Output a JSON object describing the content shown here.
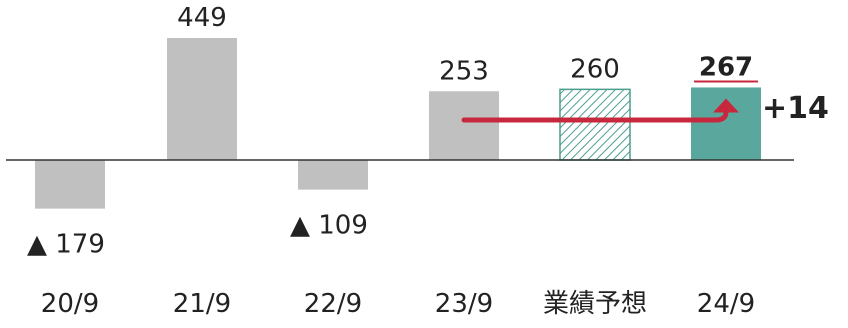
{
  "chart_data": {
    "type": "bar",
    "categories": [
      "20/9",
      "21/9",
      "22/9",
      "23/9",
      "業績予想",
      "24/9"
    ],
    "values": [
      -179,
      449,
      -109,
      253,
      260,
      267
    ],
    "value_labels": [
      "▲ 179",
      "449",
      "▲ 109",
      "253",
      "260",
      "267"
    ],
    "bar_styles": [
      "gray",
      "gray",
      "gray",
      "gray",
      "hatched",
      "teal"
    ],
    "highlight_index": 5,
    "change_annotation": {
      "from_index": 3,
      "to_index": 5,
      "label": "+14"
    },
    "title": "",
    "xlabel": "",
    "ylabel": "",
    "ylim": [
      -210,
      470
    ],
    "grid": false,
    "legend": "none",
    "colors": {
      "gray": "#c0c0c0",
      "teal": "#5aa89d",
      "teal_dark": "#3d8b80",
      "hatch": "#4a9c8f",
      "accent": "#c8283e",
      "axis": "#333333"
    }
  }
}
